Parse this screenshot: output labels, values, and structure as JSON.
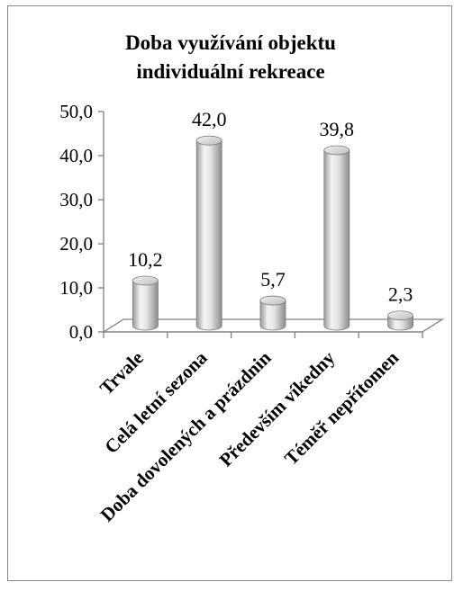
{
  "chart_data": {
    "type": "bar",
    "title_lines": [
      "Doba využívání objektu",
      "individuální rekreace"
    ],
    "categories": [
      "Trvale",
      "Celá letní sezona",
      "Doba dovolených a prázdnin",
      "Především víkedny",
      "Téměř nepřítomen"
    ],
    "values": [
      10.2,
      42.0,
      5.7,
      39.8,
      2.3
    ],
    "value_labels": [
      "10,2",
      "42,0",
      "5,7",
      "39,8",
      "2,3"
    ],
    "y_ticks": [
      "0,0",
      "10,0",
      "20,0",
      "30,0",
      "40,0",
      "50,0"
    ],
    "ylim": [
      0,
      50
    ],
    "xlabel": "",
    "ylabel": "",
    "grid": false,
    "legend": "none",
    "style": "3d-cylinder",
    "colors": {
      "bar_light": "#f4f4f4",
      "bar_mid": "#d2d2d2",
      "bar_dark": "#8c8c8c",
      "axis": "#7f7f7f",
      "frame": "#8a8a8a"
    }
  }
}
